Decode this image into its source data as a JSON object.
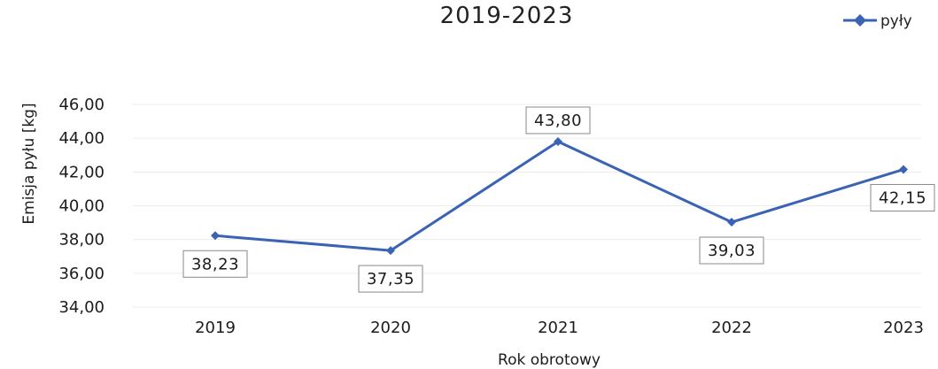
{
  "chart_data": {
    "type": "line",
    "title": "2019-2023",
    "xlabel": "Rok obrotowy",
    "ylabel": "Emisja pyłu [kg]",
    "categories": [
      "2019",
      "2020",
      "2021",
      "2022",
      "2023"
    ],
    "series": [
      {
        "name": "pyły",
        "values": [
          38.23,
          37.35,
          43.8,
          39.03,
          42.15
        ],
        "labels": [
          "38,23",
          "37,35",
          "43,80",
          "39,03",
          "42,15"
        ],
        "color": "#3a63b4"
      }
    ],
    "ylim": [
      34,
      46
    ],
    "yticks": [
      "34,00",
      "36,00",
      "38,00",
      "40,00",
      "42,00",
      "44,00",
      "46,00"
    ],
    "grid": true,
    "legend_position": "top-right",
    "marker": "diamond"
  }
}
